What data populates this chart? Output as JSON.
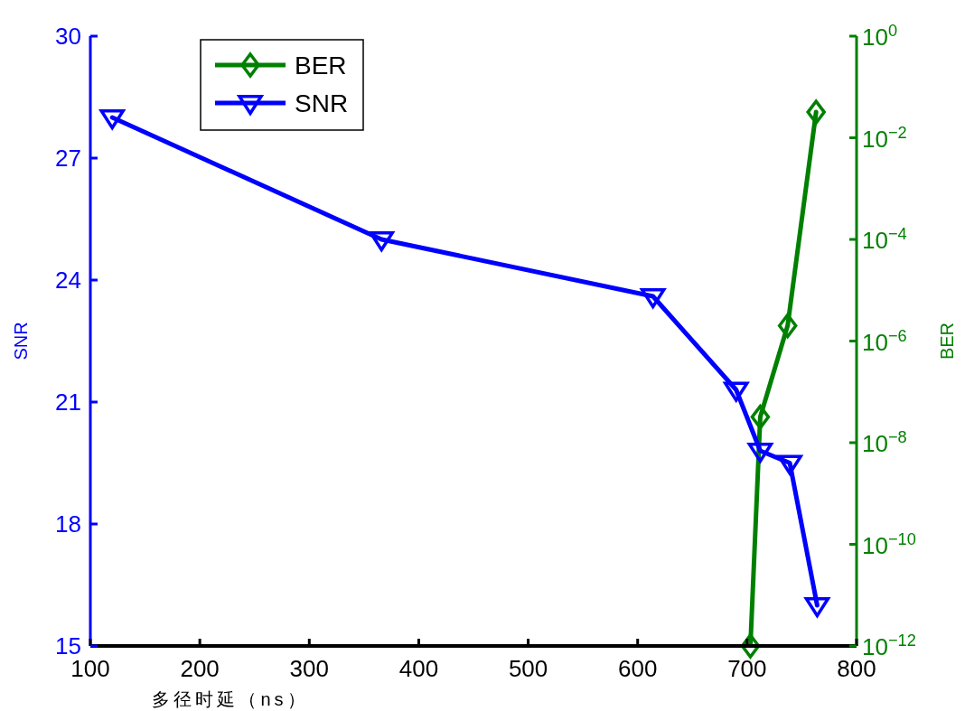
{
  "chart_data": {
    "type": "line",
    "xlabel": "多径时延（ns）",
    "ylabel": "SNR",
    "y2label": "BER",
    "xlim": [
      100,
      800
    ],
    "xticks": [
      100,
      200,
      300,
      400,
      500,
      600,
      700,
      800
    ],
    "ylim": [
      15,
      30
    ],
    "yticks": [
      15,
      18,
      21,
      24,
      27,
      30
    ],
    "log": "y2",
    "y2lim": [
      1e-12,
      1
    ],
    "y2ticks": [
      {
        "value": 1e-12,
        "label": "10$^{−12}$"
      },
      {
        "value": 1e-10,
        "label": "10$^{−10}$"
      },
      {
        "value": 1e-08,
        "label": "10$^{−8}$"
      },
      {
        "value": 1e-06,
        "label": "10$^{−6}$"
      },
      {
        "value": 0.0001,
        "label": "10$^{−4}$"
      },
      {
        "value": 0.01,
        "label": "10$^{−2}$"
      },
      {
        "value": 1,
        "label": "10$^{0}$"
      }
    ],
    "legend": "top left",
    "grid": false,
    "line_style": "solid",
    "series": [
      {
        "name": "BER",
        "color": "#008000",
        "axis": "y2",
        "marker": "diamond",
        "x": [
          703,
          712,
          737,
          763
        ],
        "values": [
          1e-12,
          3.2e-08,
          2e-06,
          0.032
        ]
      },
      {
        "name": "SNR",
        "color": "#0000ff",
        "marker": "triangle",
        "x": [
          120,
          366,
          614,
          690,
          712,
          739,
          764
        ],
        "values": [
          28,
          25,
          23.6,
          21.3,
          19.8,
          19.5,
          16
        ]
      }
    ]
  }
}
